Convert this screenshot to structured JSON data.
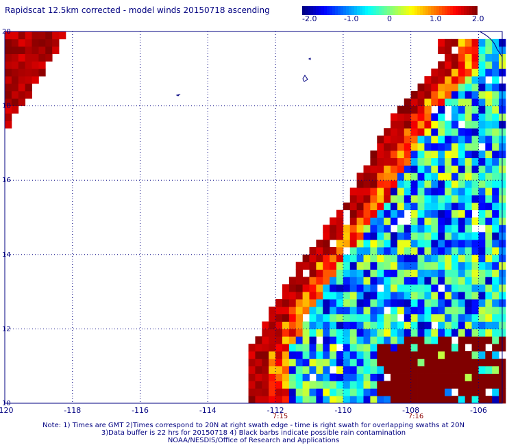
{
  "title": "Rapidscat 12.5km corrected - model winds 20150718 ascending",
  "colorbar": {
    "tick_labels": [
      "-2.0",
      "-1.0",
      "0",
      "1.0",
      "2.0"
    ],
    "range": [
      -2.0,
      2.0
    ],
    "colormap": "jet"
  },
  "time_labels": [
    "7:15",
    "7:16"
  ],
  "notes": [
    "Note: 1) Times are GMT 2)Times correspond to 20N at right swath edge - time is right swath for overlapping swaths at 20N",
    "3)Data buffer is 22 hrs for 20150718 4) Black barbs indicate possible rain contamination",
    "NOAA/NESDIS/Office of Research and Applications"
  ],
  "chart_data": {
    "type": "heatmap",
    "title": "Rapidscat 12.5km corrected - model winds 20150718 ascending",
    "xlabel": "",
    "ylabel": "",
    "xlim": [
      -120,
      -105.3
    ],
    "ylim": [
      10,
      20
    ],
    "x_ticks": [
      -120,
      -118,
      -116,
      -114,
      -112,
      -110,
      -108,
      -106
    ],
    "x_tick_labels": [
      "-120",
      "-118",
      "-116",
      "-114",
      "-112",
      "-110",
      "-108",
      "-106"
    ],
    "y_ticks": [
      10,
      12,
      14,
      16,
      18,
      20
    ],
    "y_tick_labels": [
      "10",
      "12",
      "14",
      "16",
      "18",
      "20"
    ],
    "grid": true,
    "value_range": [
      -2.0,
      2.0
    ],
    "colormap": "jet",
    "cell_size_deg": 0.2,
    "swath_west_edge": [
      [
        11.4,
        -112.8
      ],
      [
        13.6,
        -111.4
      ],
      [
        15.6,
        -109.8
      ],
      [
        17.6,
        -108.6
      ],
      [
        19.2,
        -107.2
      ]
    ],
    "regions": [
      {
        "name": "northwest swath fragment",
        "lon_range": [
          -120,
          -118
        ],
        "lat_range": [
          17.3,
          20
        ],
        "value": 2.0
      },
      {
        "name": "west swath edge",
        "value_range": [
          1.5,
          2.0
        ]
      },
      {
        "name": "central swath",
        "value_range": [
          -1.8,
          0.5
        ]
      },
      {
        "name": "southeast corner",
        "lon_range": [
          -109,
          -105.3
        ],
        "lat_range": [
          10,
          11.8
        ],
        "value": 2.0
      }
    ]
  }
}
